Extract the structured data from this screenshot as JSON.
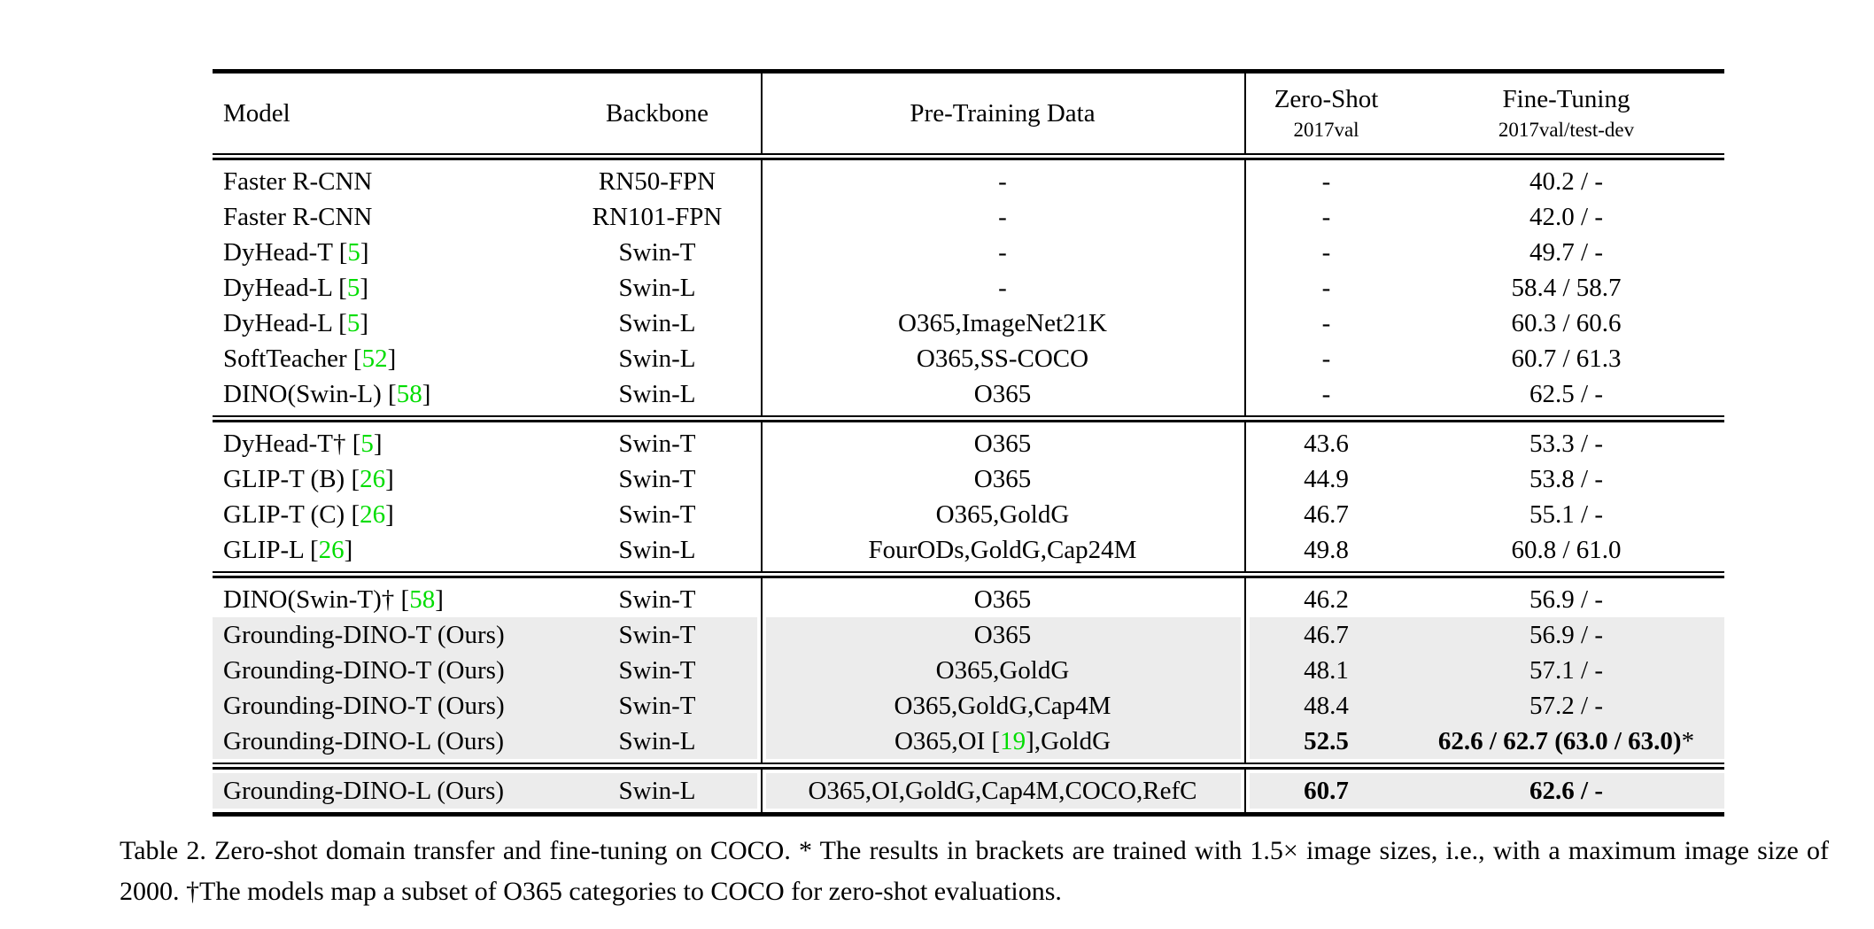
{
  "colors": {
    "citation_green": "#00DD00",
    "row_highlight": "#ECECEC"
  },
  "header": {
    "model": "Model",
    "backbone": "Backbone",
    "pretrain": "Pre-Training Data",
    "zeroshot_main": "Zero-Shot",
    "zeroshot_sub": "2017val",
    "finetune_main": "Fine-Tuning",
    "finetune_sub": "2017val/test-dev"
  },
  "blocks": [
    {
      "rows": [
        {
          "m_pre": "Faster R-CNN",
          "m_cite": "",
          "m_post": "",
          "backbone": "RN50-FPN",
          "p_pre": "-",
          "p_cite": "",
          "p_post": "",
          "zs": "-",
          "ft": "40.2 / -"
        },
        {
          "m_pre": "Faster R-CNN",
          "m_cite": "",
          "m_post": "",
          "backbone": "RN101-FPN",
          "p_pre": "-",
          "p_cite": "",
          "p_post": "",
          "zs": "-",
          "ft": "42.0 / -"
        },
        {
          "m_pre": "DyHead-T [",
          "m_cite": "5",
          "m_post": "]",
          "backbone": "Swin-T",
          "p_pre": "-",
          "p_cite": "",
          "p_post": "",
          "zs": "-",
          "ft": "49.7 / -"
        },
        {
          "m_pre": "DyHead-L [",
          "m_cite": "5",
          "m_post": "]",
          "backbone": "Swin-L",
          "p_pre": "-",
          "p_cite": "",
          "p_post": "",
          "zs": "-",
          "ft": "58.4 / 58.7"
        },
        {
          "m_pre": "DyHead-L [",
          "m_cite": "5",
          "m_post": "]",
          "backbone": "Swin-L",
          "p_pre": "O365,ImageNet21K",
          "p_cite": "",
          "p_post": "",
          "zs": "-",
          "ft": "60.3 / 60.6"
        },
        {
          "m_pre": "SoftTeacher [",
          "m_cite": "52",
          "m_post": "]",
          "backbone": "Swin-L",
          "p_pre": "O365,SS-COCO",
          "p_cite": "",
          "p_post": "",
          "zs": "-",
          "ft": "60.7 / 61.3"
        },
        {
          "m_pre": "DINO(Swin-L) [",
          "m_cite": "58",
          "m_post": "]",
          "backbone": "Swin-L",
          "p_pre": "O365",
          "p_cite": "",
          "p_post": "",
          "zs": "-",
          "ft": "62.5 / -"
        }
      ]
    },
    {
      "rows": [
        {
          "m_pre": "DyHead-T† [",
          "m_cite": "5",
          "m_post": "]",
          "backbone": "Swin-T",
          "p_pre": "O365",
          "p_cite": "",
          "p_post": "",
          "zs": "43.6",
          "ft": "53.3 / -"
        },
        {
          "m_pre": "GLIP-T (B) [",
          "m_cite": "26",
          "m_post": "]",
          "backbone": "Swin-T",
          "p_pre": "O365",
          "p_cite": "",
          "p_post": "",
          "zs": "44.9",
          "ft": "53.8 / -"
        },
        {
          "m_pre": "GLIP-T (C) [",
          "m_cite": "26",
          "m_post": "]",
          "backbone": "Swin-T",
          "p_pre": "O365,GoldG",
          "p_cite": "",
          "p_post": "",
          "zs": "46.7",
          "ft": "55.1 / -"
        },
        {
          "m_pre": "GLIP-L [",
          "m_cite": "26",
          "m_post": "]",
          "backbone": "Swin-L",
          "p_pre": "FourODs,GoldG,Cap24M",
          "p_cite": "",
          "p_post": "",
          "zs": "49.8",
          "ft": "60.8 / 61.0"
        }
      ]
    },
    {
      "rows": [
        {
          "m_pre": "DINO(Swin-T)† [",
          "m_cite": "58",
          "m_post": "]",
          "backbone": "Swin-T",
          "p_pre": "O365",
          "p_cite": "",
          "p_post": "",
          "zs": "46.2",
          "ft": "56.9 / -"
        },
        {
          "m_pre": "Grounding-DINO-T (Ours)",
          "m_cite": "",
          "m_post": "",
          "backbone": "Swin-T",
          "p_pre": "O365",
          "p_cite": "",
          "p_post": "",
          "zs": "46.7",
          "ft": "56.9 / -"
        },
        {
          "m_pre": "Grounding-DINO-T (Ours)",
          "m_cite": "",
          "m_post": "",
          "backbone": "Swin-T",
          "p_pre": "O365,GoldG",
          "p_cite": "",
          "p_post": "",
          "zs": "48.1",
          "ft": "57.1 / -"
        },
        {
          "m_pre": "Grounding-DINO-T (Ours)",
          "m_cite": "",
          "m_post": "",
          "backbone": "Swin-T",
          "p_pre": "O365,GoldG,Cap4M",
          "p_cite": "",
          "p_post": "",
          "zs": "48.4",
          "ft": "57.2 / -"
        },
        {
          "m_pre": "Grounding-DINO-L (Ours)",
          "m_cite": "",
          "m_post": "",
          "backbone": "Swin-L",
          "p_pre": "O365,OI [",
          "p_cite": "19",
          "p_post": "],GoldG",
          "zs": "52.5",
          "ft": "62.6 / 62.7 (63.0 / 63.0)",
          "ft_star": "*"
        }
      ]
    },
    {
      "rows": [
        {
          "m_pre": "Grounding-DINO-L (Ours)",
          "m_cite": "",
          "m_post": "",
          "backbone": "Swin-L",
          "p_pre": "O365,OI,GoldG,Cap4M,COCO,RefC",
          "p_cite": "",
          "p_post": "",
          "zs": "60.7",
          "ft": "62.6 / -"
        }
      ]
    }
  ],
  "caption": "Table 2.  Zero-shot domain transfer and fine-tuning on COCO. * The results in brackets are trained with 1.5× image sizes, i.e., with a maximum image size of 2000. †The models map a subset of O365 categories to COCO for zero-shot evaluations."
}
